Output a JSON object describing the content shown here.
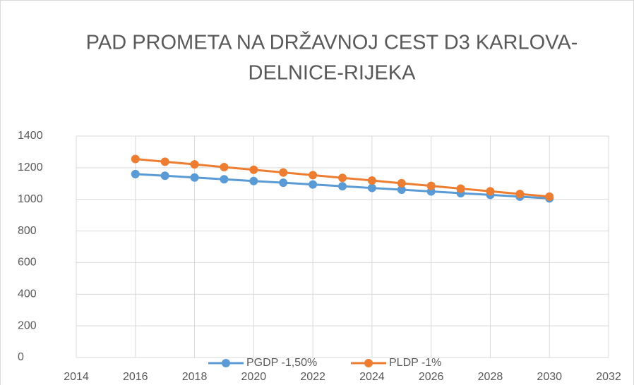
{
  "chart_data": {
    "type": "line",
    "title_lines": [
      "PAD PROMETA NA DRŽAVNOJ CEST D3 KARLOVA-",
      "DELNICE-RIJEKA"
    ],
    "x": [
      2016,
      2017,
      2018,
      2019,
      2020,
      2021,
      2022,
      2023,
      2024,
      2025,
      2026,
      2027,
      2028,
      2029,
      2030
    ],
    "series": [
      {
        "name": "PGDP -1,50%",
        "color": "#5b9bd5",
        "values": [
          1160,
          1149,
          1138,
          1127,
          1116,
          1105,
          1094,
          1083,
          1072,
          1061,
          1050,
          1039,
          1028,
          1017,
          1006
        ]
      },
      {
        "name": "PLDP -1%",
        "color": "#ed7d31",
        "values": [
          1255,
          1238,
          1221,
          1204,
          1187,
          1170,
          1153,
          1136,
          1119,
          1102,
          1085,
          1068,
          1051,
          1034,
          1017
        ]
      }
    ],
    "xlim": [
      2014,
      2032
    ],
    "xticks": [
      2014,
      2016,
      2018,
      2020,
      2022,
      2024,
      2026,
      2028,
      2030,
      2032
    ],
    "ylim": [
      0,
      1400
    ],
    "yticks": [
      0,
      200,
      400,
      600,
      800,
      1000,
      1200,
      1400
    ],
    "grid": true,
    "legend": "bottom"
  }
}
